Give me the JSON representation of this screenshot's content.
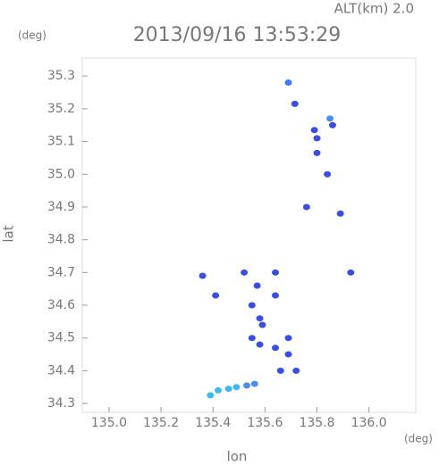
{
  "chart_data": {
    "type": "scatter",
    "title": "2013/09/16 13:53:29",
    "annotations": [
      "ALT(km) 2.0",
      "(deg)",
      "(deg)"
    ],
    "xlabel": "lon",
    "ylabel": "lat",
    "xlim": [
      134.897,
      136.18
    ],
    "ylim": [
      34.273,
      35.355
    ],
    "xticks": [
      {
        "value": 135.0,
        "label": "135.0"
      },
      135.2,
      135.4,
      135.6,
      135.8,
      {
        "value": 136.0,
        "label": "136.0"
      }
    ],
    "yticks": [
      34.3,
      34.4,
      34.5,
      34.6,
      34.7,
      34.8,
      34.9,
      {
        "value": 35.0,
        "label": "35.0"
      },
      35.1,
      35.2,
      35.3
    ],
    "x": [
      135.69,
      135.715,
      135.79,
      135.8,
      135.85,
      135.86,
      135.8,
      135.84,
      135.76,
      135.89,
      135.93,
      135.36,
      135.41,
      135.52,
      135.57,
      135.64,
      135.64,
      135.55,
      135.58,
      135.59,
      135.55,
      135.58,
      135.64,
      135.69,
      135.69,
      135.66,
      135.72,
      135.39,
      135.42,
      135.46,
      135.49,
      135.53,
      135.56
    ],
    "values": [
      35.28,
      35.215,
      35.135,
      35.11,
      35.17,
      35.15,
      35.065,
      35.0,
      34.9,
      34.88,
      34.7,
      34.69,
      34.63,
      34.7,
      34.66,
      34.7,
      34.63,
      34.6,
      34.56,
      34.54,
      34.5,
      34.48,
      34.47,
      34.5,
      34.45,
      34.4,
      34.4,
      34.325,
      34.34,
      34.345,
      34.35,
      34.355,
      34.36
    ],
    "colors": [
      "#3f7cf0",
      "#3a4fe0",
      "#3a4fe0",
      "#3a4fe0",
      "#4d8cf5",
      "#3a4fe0",
      "#3a4fe0",
      "#3a4fe0",
      "#3a4fe0",
      "#3a4fe0",
      "#3a4fe0",
      "#3a4fe0",
      "#3a4fe0",
      "#3a4fe0",
      "#3a4fe0",
      "#3a4fe0",
      "#3a4fe0",
      "#3a4fe0",
      "#3a4fe0",
      "#3a4fe0",
      "#3a4fe0",
      "#3a4fe0",
      "#3a4fe0",
      "#3a4fe0",
      "#3a4fe0",
      "#3a4fe0",
      "#3a4fe0",
      "#3fb8f0",
      "#3fb8f0",
      "#3fb8f0",
      "#3fb8f0",
      "#4d8cf5",
      "#4d8cf5"
    ]
  }
}
